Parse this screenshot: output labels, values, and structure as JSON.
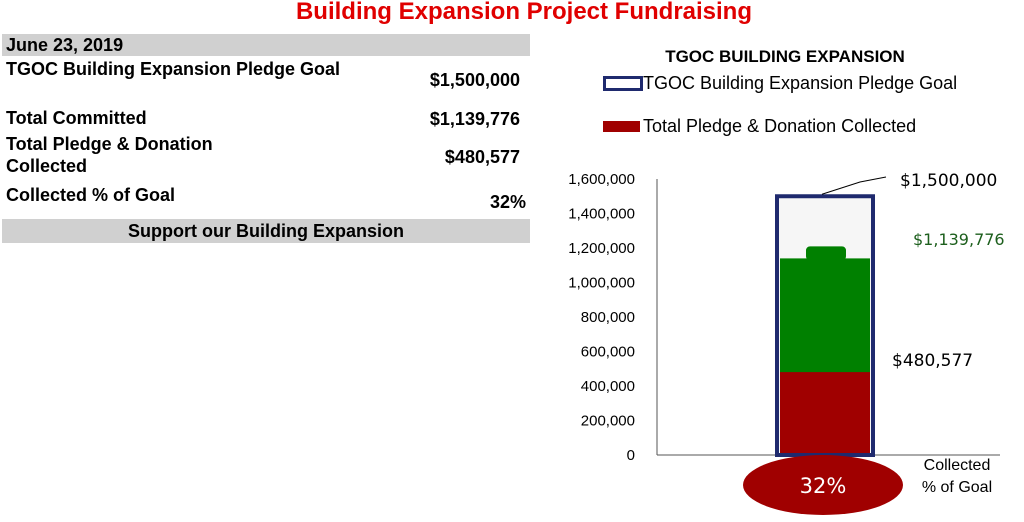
{
  "page_title": "Building Expansion Project Fundraising",
  "summary": {
    "date": "June 23, 2019",
    "rows": [
      {
        "label": "TGOC Building Expansion  Pledge Goal",
        "value": "$1,500,000"
      },
      {
        "label": "Total Committed",
        "value": "$1,139,776"
      },
      {
        "label": "Total Pledge & Donation Collected",
        "value": "$480,577"
      },
      {
        "label": "Collected % of Goal",
        "value": "32%"
      }
    ],
    "footer": "Support our Building Expansion"
  },
  "colors": {
    "title": "#e00000",
    "goal_outline": "#1f2a6e",
    "committed": "#008000",
    "collected": "#a00000",
    "committed_label": "#1d5f1d"
  },
  "chart_data": {
    "type": "bar",
    "title": "TGOC BUILDING EXPANSION",
    "legend": [
      "TGOC Building Expansion  Pledge Goal",
      "Total Pledge & Donation Collected"
    ],
    "categories": [
      "Collected % of Goal"
    ],
    "series": [
      {
        "name": "TGOC Building Expansion  Pledge Goal",
        "values": [
          1500000
        ]
      },
      {
        "name": "Total Pledge & Donation Collected",
        "values": [
          480577
        ]
      }
    ],
    "committed_value": 1139776,
    "percent_collected": 32,
    "ylim": [
      0,
      1600000
    ],
    "yticks": [
      0,
      200000,
      400000,
      600000,
      800000,
      1000000,
      1200000,
      1400000,
      1600000
    ],
    "ytick_labels": [
      "0",
      "200,000",
      "400,000",
      "600,000",
      "800,000",
      "1,000,000",
      "1,200,000",
      "1,400,000",
      "1,600,000"
    ],
    "data_labels": {
      "goal": "$1,500,000",
      "committed": "$1,139,776",
      "collected": "$480,577",
      "percent": "32%"
    },
    "x_label_line1": "Collected",
    "x_label_line2": "% of Goal"
  }
}
